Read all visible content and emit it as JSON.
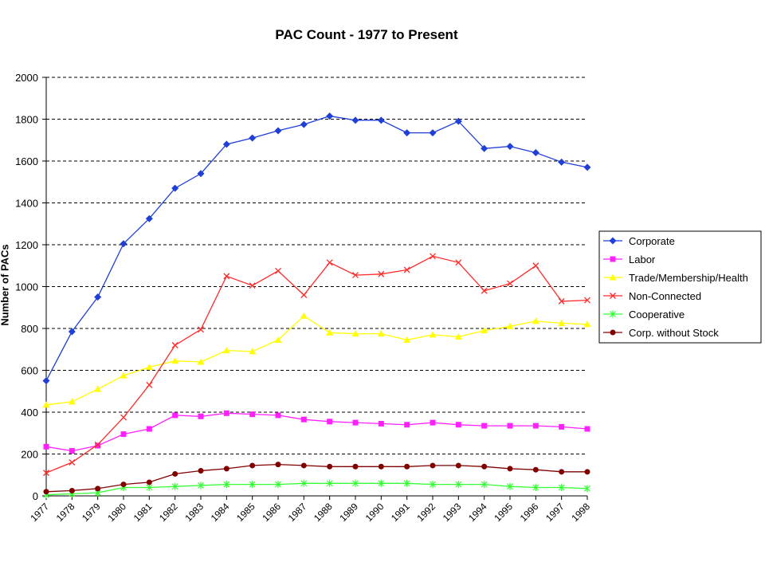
{
  "chart_data": {
    "type": "line",
    "title": "PAC Count - 1977 to Present",
    "xlabel": "",
    "ylabel": "Number of PACs",
    "ylim": [
      0,
      2000
    ],
    "yticks": [
      "0",
      "200",
      "400",
      "600",
      "800",
      "1000",
      "1200",
      "1400",
      "1600",
      "1800",
      "2000"
    ],
    "categories": [
      "1977",
      "1978",
      "1979",
      "1980",
      "1981",
      "1982",
      "1983",
      "1984",
      "1985",
      "1986",
      "1987",
      "1988",
      "1989",
      "1990",
      "1991",
      "1992",
      "1993",
      "1994",
      "1995",
      "1996",
      "1997",
      "1998"
    ],
    "grid": "horizontal dashed",
    "legend_position": "right",
    "series": [
      {
        "name": "Corporate",
        "color": "#1f3fd6",
        "marker": "diamond",
        "values": [
          550,
          785,
          950,
          1205,
          1325,
          1470,
          1540,
          1680,
          1710,
          1745,
          1775,
          1815,
          1795,
          1795,
          1735,
          1735,
          1790,
          1660,
          1670,
          1640,
          1595,
          1570
        ]
      },
      {
        "name": "Labor",
        "color": "#ff20ff",
        "marker": "square",
        "values": [
          235,
          215,
          240,
          295,
          320,
          385,
          380,
          395,
          390,
          385,
          365,
          355,
          350,
          345,
          340,
          350,
          340,
          335,
          335,
          335,
          330,
          320
        ]
      },
      {
        "name": "Trade/Membership/Health",
        "color": "#ffff00",
        "marker": "triangle",
        "values": [
          435,
          450,
          510,
          575,
          615,
          645,
          640,
          695,
          690,
          745,
          860,
          780,
          775,
          775,
          745,
          770,
          760,
          790,
          810,
          835,
          825,
          820
        ]
      },
      {
        "name": "Non-Connected",
        "color": "#ff2a2a",
        "marker": "x",
        "values": [
          110,
          160,
          245,
          375,
          530,
          720,
          795,
          1050,
          1005,
          1075,
          960,
          1115,
          1055,
          1060,
          1080,
          1145,
          1115,
          980,
          1015,
          1100,
          930,
          935
        ]
      },
      {
        "name": "Cooperative",
        "color": "#33ff33",
        "marker": "star",
        "values": [
          5,
          10,
          15,
          40,
          40,
          45,
          50,
          55,
          55,
          55,
          60,
          60,
          60,
          60,
          60,
          55,
          55,
          55,
          45,
          40,
          40,
          35
        ]
      },
      {
        "name": "Corp. without Stock",
        "color": "#800000",
        "marker": "circle",
        "values": [
          20,
          25,
          35,
          55,
          65,
          105,
          120,
          130,
          145,
          150,
          145,
          140,
          140,
          140,
          140,
          145,
          145,
          140,
          130,
          125,
          115,
          115
        ]
      }
    ]
  }
}
